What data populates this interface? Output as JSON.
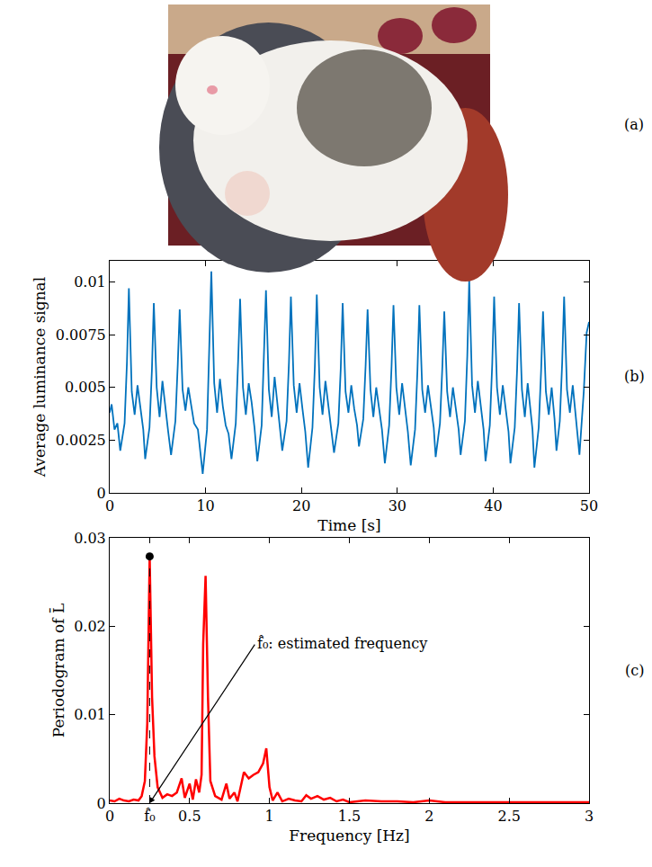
{
  "chart_data": [
    {
      "type": "image",
      "annotations": [
        {
          "text": "(a)"
        }
      ]
    },
    {
      "type": "line",
      "x": [
        0,
        0.2,
        0.5,
        0.8,
        1.1,
        1.55,
        1.8,
        2.0,
        2.3,
        2.6,
        2.9,
        3.2,
        3.5,
        3.7,
        4.15,
        4.4,
        4.6,
        4.9,
        5.2,
        5.5,
        5.8,
        6.1,
        6.4,
        6.85,
        7.1,
        7.3,
        7.6,
        7.9,
        8.2,
        8.5,
        8.8,
        9.2,
        9.7,
        10.15,
        10.4,
        10.6,
        10.9,
        11.2,
        11.5,
        11.8,
        12.1,
        12.4,
        12.7,
        13.15,
        13.4,
        13.6,
        13.9,
        14.2,
        14.5,
        14.8,
        15.1,
        15.4,
        15.85,
        16.1,
        16.3,
        16.6,
        16.9,
        17.2,
        17.5,
        17.8,
        18.0,
        18.45,
        18.7,
        18.9,
        19.2,
        19.5,
        19.8,
        20.1,
        20.4,
        20.7,
        21.15,
        21.4,
        21.6,
        21.9,
        22.2,
        22.5,
        22.8,
        23.1,
        23.4,
        23.85,
        24.1,
        24.3,
        24.6,
        24.9,
        25.2,
        25.5,
        25.8,
        26.0,
        26.45,
        26.7,
        26.9,
        27.2,
        27.5,
        27.8,
        28.1,
        28.4,
        28.7,
        29.15,
        29.4,
        29.6,
        29.9,
        30.2,
        30.5,
        30.8,
        31.1,
        31.4,
        31.85,
        32.1,
        32.3,
        32.6,
        32.9,
        33.2,
        33.5,
        33.8,
        34.0,
        34.45,
        34.7,
        34.9,
        35.2,
        35.5,
        35.8,
        36.1,
        36.4,
        36.6,
        37.05,
        37.3,
        37.5,
        37.8,
        38.1,
        38.4,
        38.7,
        39.0,
        39.2,
        39.65,
        39.9,
        40.1,
        40.4,
        40.7,
        41.0,
        41.3,
        41.6,
        41.8,
        42.25,
        42.5,
        42.7,
        43.0,
        43.3,
        43.6,
        43.9,
        44.1,
        44.3,
        44.75,
        45.0,
        45.2,
        45.5,
        45.8,
        46.1,
        46.4,
        46.6,
        46.95,
        47.2,
        47.4,
        47.7,
        48.0,
        48.3,
        48.6,
        49.0,
        49.45,
        49.75,
        50.0
      ],
      "values": [
        0.0038,
        0.0042,
        0.003,
        0.0033,
        0.002,
        0.0033,
        0.0062,
        0.0097,
        0.0048,
        0.0037,
        0.0051,
        0.0041,
        0.003,
        0.0016,
        0.0031,
        0.0058,
        0.009,
        0.005,
        0.0036,
        0.0053,
        0.004,
        0.0029,
        0.0018,
        0.0034,
        0.0061,
        0.0087,
        0.0049,
        0.0039,
        0.005,
        0.0042,
        0.0033,
        0.003,
        0.0009,
        0.003,
        0.0066,
        0.0105,
        0.0052,
        0.0038,
        0.0054,
        0.0041,
        0.0032,
        0.0028,
        0.0016,
        0.0033,
        0.0063,
        0.0092,
        0.005,
        0.0037,
        0.0052,
        0.0043,
        0.0031,
        0.0015,
        0.0032,
        0.0064,
        0.0096,
        0.0049,
        0.0036,
        0.0055,
        0.0041,
        0.003,
        0.002,
        0.0034,
        0.0062,
        0.0093,
        0.0051,
        0.0038,
        0.0052,
        0.004,
        0.0029,
        0.0012,
        0.0031,
        0.006,
        0.0094,
        0.005,
        0.0037,
        0.0053,
        0.0042,
        0.0031,
        0.0019,
        0.0033,
        0.0059,
        0.009,
        0.0048,
        0.0038,
        0.0051,
        0.004,
        0.0032,
        0.0022,
        0.0035,
        0.0061,
        0.0087,
        0.0049,
        0.0036,
        0.005,
        0.0039,
        0.003,
        0.0014,
        0.0032,
        0.006,
        0.0089,
        0.005,
        0.0037,
        0.0052,
        0.0041,
        0.0029,
        0.0013,
        0.003,
        0.0058,
        0.0089,
        0.0049,
        0.0038,
        0.0051,
        0.004,
        0.0031,
        0.0017,
        0.0033,
        0.006,
        0.0086,
        0.0048,
        0.0036,
        0.005,
        0.0041,
        0.003,
        0.0018,
        0.0034,
        0.0065,
        0.0101,
        0.0051,
        0.0038,
        0.0053,
        0.004,
        0.003,
        0.0015,
        0.0032,
        0.0061,
        0.0093,
        0.005,
        0.0037,
        0.0051,
        0.004,
        0.0029,
        0.0014,
        0.0031,
        0.0059,
        0.009,
        0.0049,
        0.0036,
        0.0052,
        0.004,
        0.003,
        0.0012,
        0.0031,
        0.0058,
        0.0086,
        0.0048,
        0.0037,
        0.005,
        0.0035,
        0.002,
        0.0034,
        0.0062,
        0.0093,
        0.0049,
        0.0038,
        0.0051,
        0.0038,
        0.0018,
        0.0048,
        0.0076,
        0.0081
      ],
      "color": "#0072bd",
      "xlim": [
        0,
        50
      ],
      "ylim": [
        0,
        0.011
      ],
      "xticks": [
        0,
        10,
        20,
        30,
        40,
        50
      ],
      "yticks": [
        0,
        0.0025,
        0.005,
        0.0075,
        0.01
      ],
      "xlabel": "Time [s]",
      "ylabel": "Average luminance signal",
      "grid": false,
      "annotations": [
        {
          "text": "(b)"
        }
      ]
    },
    {
      "type": "line",
      "x": [
        0,
        0.03,
        0.06,
        0.09,
        0.12,
        0.15,
        0.18,
        0.2,
        0.22,
        0.235,
        0.25,
        0.265,
        0.28,
        0.3,
        0.33,
        0.36,
        0.39,
        0.42,
        0.45,
        0.47,
        0.5,
        0.52,
        0.54,
        0.56,
        0.575,
        0.585,
        0.6,
        0.615,
        0.63,
        0.66,
        0.7,
        0.73,
        0.75,
        0.78,
        0.8,
        0.84,
        0.87,
        0.9,
        0.93,
        0.96,
        0.98,
        1.0,
        1.02,
        1.05,
        1.08,
        1.12,
        1.16,
        1.2,
        1.23,
        1.26,
        1.3,
        1.34,
        1.38,
        1.42,
        1.46,
        1.5,
        1.6,
        1.7,
        1.8,
        1.9,
        2.0,
        2.1,
        2.2,
        2.4,
        2.6,
        2.8,
        3.0
      ],
      "values": [
        0.0003,
        0.0002,
        0.0005,
        0.0003,
        0.0002,
        0.0004,
        0.0003,
        0.0008,
        0.0025,
        0.009,
        0.0279,
        0.012,
        0.0053,
        0.0018,
        0.0006,
        0.001,
        0.0008,
        0.0012,
        0.0028,
        0.0006,
        0.0022,
        0.0004,
        0.0027,
        0.0012,
        0.0032,
        0.018,
        0.0257,
        0.012,
        0.0025,
        0.0008,
        0.0004,
        0.0022,
        0.0005,
        0.0012,
        0.0002,
        0.0035,
        0.0028,
        0.0032,
        0.0035,
        0.0045,
        0.0062,
        0.0018,
        0.0003,
        0.0012,
        0.0002,
        0.0005,
        0.0003,
        0.0002,
        0.0009,
        0.0005,
        0.0008,
        0.0004,
        0.0006,
        0.0002,
        0.0004,
        0.0001,
        0.0003,
        0.0002,
        0.0002,
        0.0001,
        0.0003,
        0.0001,
        0.0001,
        0.0001,
        0.0001,
        0.0001,
        0.0001
      ],
      "color": "#ff0000",
      "xlim": [
        0,
        3
      ],
      "ylim": [
        0,
        0.03
      ],
      "xticks": [
        0,
        {
          "value": 0.25,
          "label": "f̂₀"
        },
        0.5,
        1,
        1.5,
        2,
        2.5,
        3
      ],
      "yticks": [
        0,
        0.01,
        0.02,
        0.03
      ],
      "xlabel": "Frequency [Hz]",
      "ylabel": "Periodogram of L̄",
      "grid": false,
      "marked_point": {
        "x": 0.25,
        "y": 0.0279
      },
      "annotations": [
        {
          "text": "f̂₀: estimated frequency",
          "x": 0.25,
          "y": 0
        },
        {
          "text": "(c)"
        }
      ]
    }
  ]
}
